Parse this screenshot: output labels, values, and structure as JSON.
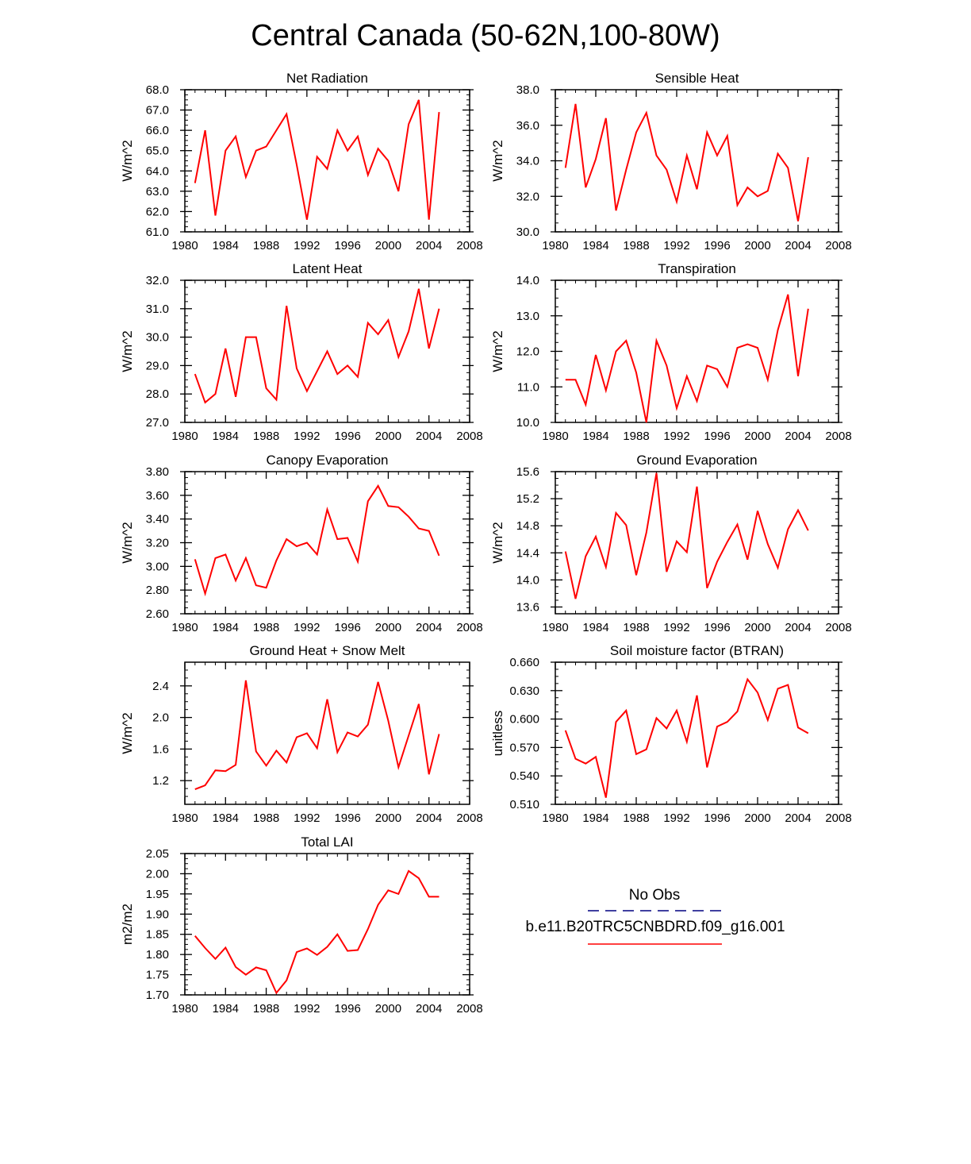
{
  "title": "Central Canada (50-62N,100-80W)",
  "colors": {
    "series": "#ff0000",
    "obs": "#000080",
    "axis": "#000000"
  },
  "chart_data": [
    {
      "type": "line",
      "title": "Net Radiation",
      "ylabel": "W/m^2",
      "xlim": [
        1980,
        2008
      ],
      "ylim": [
        61,
        68
      ],
      "xticks": [
        1980,
        1984,
        1988,
        1992,
        1996,
        2000,
        2004,
        2008
      ],
      "xtick_labels": [
        "1980",
        "1984",
        "1988",
        "1992",
        "1996",
        "2000",
        "2004",
        "2008"
      ],
      "yticks": [
        61,
        62,
        63,
        64,
        65,
        66,
        67,
        68
      ],
      "ytick_labels": [
        "61.0",
        "62.0",
        "63.0",
        "64.0",
        "65.0",
        "66.0",
        "67.0",
        "68.0"
      ],
      "x": [
        1981,
        1982,
        1983,
        1984,
        1985,
        1986,
        1987,
        1988,
        1989,
        1990,
        1991,
        1992,
        1993,
        1994,
        1995,
        1996,
        1997,
        1998,
        1999,
        2000,
        2001,
        2002,
        2003,
        2004,
        2005
      ],
      "values": [
        63.4,
        66.0,
        61.8,
        65.0,
        65.7,
        63.7,
        65.0,
        65.2,
        66.0,
        66.8,
        64.3,
        61.6,
        64.7,
        64.1,
        66.0,
        65.0,
        65.7,
        63.8,
        65.1,
        64.5,
        63.0,
        66.3,
        67.5,
        61.6,
        66.9
      ]
    },
    {
      "type": "line",
      "title": "Sensible Heat",
      "ylabel": "W/m^2",
      "xlim": [
        1980,
        2008
      ],
      "ylim": [
        30,
        38
      ],
      "xticks": [
        1980,
        1984,
        1988,
        1992,
        1996,
        2000,
        2004,
        2008
      ],
      "xtick_labels": [
        "1980",
        "1984",
        "1988",
        "1992",
        "1996",
        "2000",
        "2004",
        "2008"
      ],
      "yticks": [
        30,
        32,
        34,
        36,
        38
      ],
      "ytick_labels": [
        "30.0",
        "32.0",
        "34.0",
        "36.0",
        "38.0"
      ],
      "x": [
        1981,
        1982,
        1983,
        1984,
        1985,
        1986,
        1987,
        1988,
        1989,
        1990,
        1991,
        1992,
        1993,
        1994,
        1995,
        1996,
        1997,
        1998,
        1999,
        2000,
        2001,
        2002,
        2003,
        2004,
        2005
      ],
      "values": [
        33.6,
        37.2,
        32.5,
        34.1,
        36.4,
        31.2,
        33.5,
        35.6,
        36.7,
        34.3,
        33.5,
        31.7,
        34.3,
        32.4,
        35.6,
        34.3,
        35.4,
        31.5,
        32.5,
        32.0,
        32.3,
        34.4,
        33.6,
        30.6,
        34.2
      ]
    },
    {
      "type": "line",
      "title": "Latent Heat",
      "ylabel": "W/m^2",
      "xlim": [
        1980,
        2008
      ],
      "ylim": [
        27,
        32
      ],
      "xticks": [
        1980,
        1984,
        1988,
        1992,
        1996,
        2000,
        2004,
        2008
      ],
      "xtick_labels": [
        "1980",
        "1984",
        "1988",
        "1992",
        "1996",
        "2000",
        "2004",
        "2008"
      ],
      "yticks": [
        27,
        28,
        29,
        30,
        31,
        32
      ],
      "ytick_labels": [
        "27.0",
        "28.0",
        "29.0",
        "30.0",
        "31.0",
        "32.0"
      ],
      "x": [
        1981,
        1982,
        1983,
        1984,
        1985,
        1986,
        1987,
        1988,
        1989,
        1990,
        1991,
        1992,
        1993,
        1994,
        1995,
        1996,
        1997,
        1998,
        1999,
        2000,
        2001,
        2002,
        2003,
        2004,
        2005
      ],
      "values": [
        28.7,
        27.7,
        28.0,
        29.6,
        27.9,
        30.0,
        30.0,
        28.2,
        27.8,
        31.1,
        28.9,
        28.1,
        28.8,
        29.5,
        28.7,
        29.0,
        28.6,
        30.5,
        30.1,
        30.6,
        29.3,
        30.2,
        31.7,
        29.6,
        31.0
      ]
    },
    {
      "type": "line",
      "title": "Transpiration",
      "ylabel": "W/m^2",
      "xlim": [
        1980,
        2008
      ],
      "ylim": [
        10,
        14
      ],
      "xticks": [
        1980,
        1984,
        1988,
        1992,
        1996,
        2000,
        2004,
        2008
      ],
      "xtick_labels": [
        "1980",
        "1984",
        "1988",
        "1992",
        "1996",
        "2000",
        "2004",
        "2008"
      ],
      "yticks": [
        10,
        11,
        12,
        13,
        14
      ],
      "ytick_labels": [
        "10.0",
        "11.0",
        "12.0",
        "13.0",
        "14.0"
      ],
      "x": [
        1981,
        1982,
        1983,
        1984,
        1985,
        1986,
        1987,
        1988,
        1989,
        1990,
        1991,
        1992,
        1993,
        1994,
        1995,
        1996,
        1997,
        1998,
        1999,
        2000,
        2001,
        2002,
        2003,
        2004,
        2005
      ],
      "values": [
        11.2,
        11.2,
        10.5,
        11.9,
        10.9,
        12.0,
        12.3,
        11.4,
        10.0,
        12.3,
        11.6,
        10.4,
        11.3,
        10.6,
        11.6,
        11.5,
        11.0,
        12.1,
        12.2,
        12.1,
        11.2,
        12.6,
        13.6,
        11.3,
        13.2
      ]
    },
    {
      "type": "line",
      "title": "Canopy Evaporation",
      "ylabel": "W/m^2",
      "xlim": [
        1980,
        2008
      ],
      "ylim": [
        2.6,
        3.8
      ],
      "xticks": [
        1980,
        1984,
        1988,
        1992,
        1996,
        2000,
        2004,
        2008
      ],
      "xtick_labels": [
        "1980",
        "1984",
        "1988",
        "1992",
        "1996",
        "2000",
        "2004",
        "2008"
      ],
      "yticks": [
        2.6,
        2.8,
        3.0,
        3.2,
        3.4,
        3.6,
        3.8
      ],
      "ytick_labels": [
        "2.60",
        "2.80",
        "3.00",
        "3.20",
        "3.40",
        "3.60",
        "3.80"
      ],
      "x": [
        1981,
        1982,
        1983,
        1984,
        1985,
        1986,
        1987,
        1988,
        1989,
        1990,
        1991,
        1992,
        1993,
        1994,
        1995,
        1996,
        1997,
        1998,
        1999,
        2000,
        2001,
        2002,
        2003,
        2004,
        2005
      ],
      "values": [
        3.06,
        2.77,
        3.07,
        3.1,
        2.88,
        3.07,
        2.84,
        2.82,
        3.05,
        3.23,
        3.17,
        3.2,
        3.1,
        3.48,
        3.23,
        3.24,
        3.04,
        3.55,
        3.68,
        3.51,
        3.5,
        3.42,
        3.32,
        3.3,
        3.09
      ]
    },
    {
      "type": "line",
      "title": "Ground Evaporation",
      "ylabel": "W/m^2",
      "xlim": [
        1980,
        2008
      ],
      "ylim": [
        13.5,
        15.6
      ],
      "xticks": [
        1980,
        1984,
        1988,
        1992,
        1996,
        2000,
        2004,
        2008
      ],
      "xtick_labels": [
        "1980",
        "1984",
        "1988",
        "1992",
        "1996",
        "2000",
        "2004",
        "2008"
      ],
      "yticks": [
        13.6,
        14.0,
        14.4,
        14.8,
        15.2,
        15.6
      ],
      "ytick_labels": [
        "13.6",
        "14.0",
        "14.4",
        "14.8",
        "15.2",
        "15.6"
      ],
      "x": [
        1981,
        1982,
        1983,
        1984,
        1985,
        1986,
        1987,
        1988,
        1989,
        1990,
        1991,
        1992,
        1993,
        1994,
        1995,
        1996,
        1997,
        1998,
        1999,
        2000,
        2001,
        2002,
        2003,
        2004,
        2005
      ],
      "values": [
        14.42,
        13.72,
        14.35,
        14.64,
        14.19,
        14.99,
        14.81,
        14.07,
        14.7,
        15.58,
        14.12,
        14.57,
        14.41,
        15.38,
        13.88,
        14.27,
        14.56,
        14.82,
        14.3,
        15.02,
        14.53,
        14.18,
        14.75,
        15.03,
        14.73
      ]
    },
    {
      "type": "line",
      "title": "Ground Heat + Snow Melt",
      "ylabel": "W/m^2",
      "xlim": [
        1980,
        2008
      ],
      "ylim": [
        0.9,
        2.7
      ],
      "xticks": [
        1980,
        1984,
        1988,
        1992,
        1996,
        2000,
        2004,
        2008
      ],
      "xtick_labels": [
        "1980",
        "1984",
        "1988",
        "1992",
        "1996",
        "2000",
        "2004",
        "2008"
      ],
      "yticks": [
        1.2,
        1.6,
        2.0,
        2.4
      ],
      "ytick_labels": [
        "1.2",
        "1.6",
        "2.0",
        "2.4"
      ],
      "x": [
        1981,
        1982,
        1983,
        1984,
        1985,
        1986,
        1987,
        1988,
        1989,
        1990,
        1991,
        1992,
        1993,
        1994,
        1995,
        1996,
        1997,
        1998,
        1999,
        2000,
        2001,
        2002,
        2003,
        2004,
        2005
      ],
      "values": [
        1.09,
        1.14,
        1.33,
        1.32,
        1.4,
        2.47,
        1.57,
        1.39,
        1.58,
        1.43,
        1.75,
        1.8,
        1.61,
        2.23,
        1.56,
        1.81,
        1.76,
        1.91,
        2.45,
        1.96,
        1.37,
        1.77,
        2.17,
        1.28,
        1.79
      ]
    },
    {
      "type": "line",
      "title": "Soil moisture factor (BTRAN)",
      "ylabel": "unitless",
      "xlim": [
        1980,
        2008
      ],
      "ylim": [
        0.51,
        0.66
      ],
      "xticks": [
        1980,
        1984,
        1988,
        1992,
        1996,
        2000,
        2004,
        2008
      ],
      "xtick_labels": [
        "1980",
        "1984",
        "1988",
        "1992",
        "1996",
        "2000",
        "2004",
        "2008"
      ],
      "yticks": [
        0.51,
        0.54,
        0.57,
        0.6,
        0.63,
        0.66
      ],
      "ytick_labels": [
        "0.510",
        "0.540",
        "0.570",
        "0.600",
        "0.630",
        "0.660"
      ],
      "x": [
        1981,
        1982,
        1983,
        1984,
        1985,
        1986,
        1987,
        1988,
        1989,
        1990,
        1991,
        1992,
        1993,
        1994,
        1995,
        1996,
        1997,
        1998,
        1999,
        2000,
        2001,
        2002,
        2003,
        2004,
        2005
      ],
      "values": [
        0.588,
        0.558,
        0.553,
        0.56,
        0.517,
        0.597,
        0.609,
        0.563,
        0.568,
        0.601,
        0.59,
        0.609,
        0.576,
        0.625,
        0.549,
        0.592,
        0.597,
        0.608,
        0.642,
        0.628,
        0.599,
        0.632,
        0.636,
        0.591,
        0.585
      ]
    },
    {
      "type": "line",
      "title": "Total LAI",
      "ylabel": "m2/m2",
      "xlim": [
        1980,
        2008
      ],
      "ylim": [
        1.7,
        2.05
      ],
      "xticks": [
        1980,
        1984,
        1988,
        1992,
        1996,
        2000,
        2004,
        2008
      ],
      "xtick_labels": [
        "1980",
        "1984",
        "1988",
        "1992",
        "1996",
        "2000",
        "2004",
        "2008"
      ],
      "yticks": [
        1.7,
        1.75,
        1.8,
        1.85,
        1.9,
        1.95,
        2.0,
        2.05
      ],
      "ytick_labels": [
        "1.70",
        "1.75",
        "1.80",
        "1.85",
        "1.90",
        "1.95",
        "2.00",
        "2.05"
      ],
      "x": [
        1981,
        1982,
        1983,
        1984,
        1985,
        1986,
        1987,
        1988,
        1989,
        1990,
        1991,
        1992,
        1993,
        1994,
        1995,
        1996,
        1997,
        1998,
        1999,
        2000,
        2001,
        2002,
        2003,
        2004,
        2005
      ],
      "values": [
        1.846,
        1.816,
        1.789,
        1.817,
        1.769,
        1.75,
        1.768,
        1.761,
        1.705,
        1.736,
        1.806,
        1.815,
        1.799,
        1.819,
        1.85,
        1.809,
        1.811,
        1.863,
        1.923,
        1.959,
        1.95,
        2.007,
        1.989,
        1.943,
        1.943
      ]
    }
  ],
  "legend": {
    "entries": [
      {
        "label": "No Obs",
        "style": "dashed"
      },
      {
        "label": "b.e11.B20TRC5CNBDRD.f09_g16.001",
        "style": "solid"
      }
    ]
  }
}
